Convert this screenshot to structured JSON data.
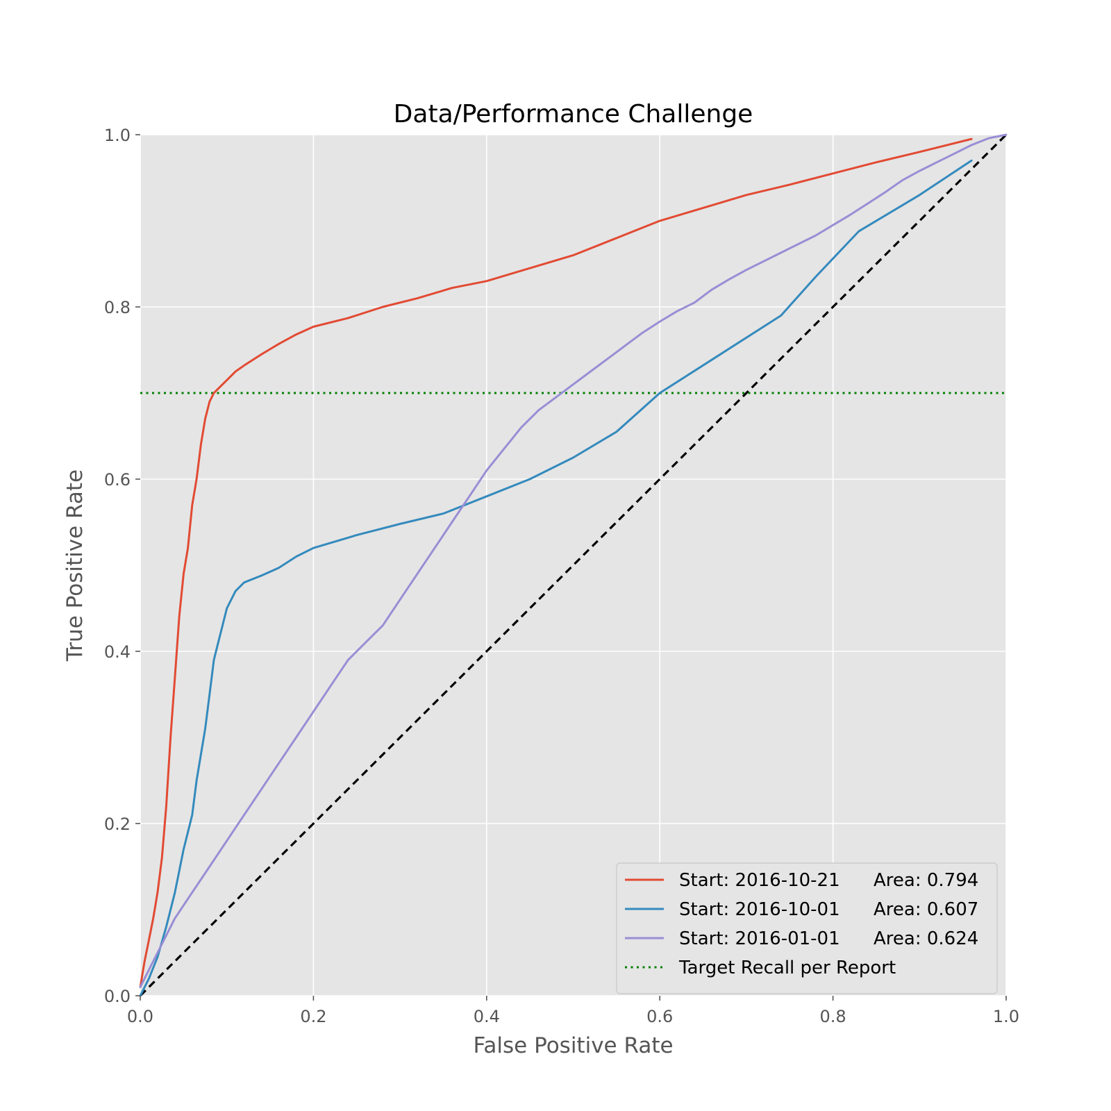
{
  "chart_data": {
    "type": "line",
    "title": "Data/Performance Challenge",
    "xlabel": "False Positive Rate",
    "ylabel": "True Positive Rate",
    "xlim": [
      0,
      1
    ],
    "ylim": [
      0,
      1
    ],
    "x_ticks": [
      "0.0",
      "0.2",
      "0.4",
      "0.6",
      "0.8",
      "1.0"
    ],
    "y_ticks": [
      "0.0",
      "0.2",
      "0.4",
      "0.6",
      "0.8",
      "1.0"
    ],
    "grid": true,
    "legend_position": "lower-right",
    "colors": {
      "plot_background": "#e5e5e5",
      "grid": "#ffffff",
      "red": "#e24a33",
      "blue": "#348abd",
      "purple": "#988ed5",
      "green": "#008000",
      "black": "#000000"
    },
    "series": [
      {
        "name": "Start: 2016-10-21",
        "area_label": "Area: 0.794",
        "color": "#e24a33",
        "style": "solid",
        "points": [
          [
            0,
            0.01
          ],
          [
            0.005,
            0.04
          ],
          [
            0.01,
            0.065
          ],
          [
            0.015,
            0.09
          ],
          [
            0.02,
            0.12
          ],
          [
            0.025,
            0.16
          ],
          [
            0.03,
            0.22
          ],
          [
            0.035,
            0.3
          ],
          [
            0.04,
            0.37
          ],
          [
            0.045,
            0.44
          ],
          [
            0.05,
            0.49
          ],
          [
            0.055,
            0.52
          ],
          [
            0.06,
            0.57
          ],
          [
            0.065,
            0.6
          ],
          [
            0.07,
            0.64
          ],
          [
            0.075,
            0.67
          ],
          [
            0.08,
            0.69
          ],
          [
            0.085,
            0.7
          ],
          [
            0.09,
            0.705
          ],
          [
            0.1,
            0.715
          ],
          [
            0.11,
            0.725
          ],
          [
            0.12,
            0.732
          ],
          [
            0.14,
            0.745
          ],
          [
            0.16,
            0.757
          ],
          [
            0.18,
            0.768
          ],
          [
            0.2,
            0.777
          ],
          [
            0.24,
            0.787
          ],
          [
            0.28,
            0.8
          ],
          [
            0.32,
            0.81
          ],
          [
            0.36,
            0.822
          ],
          [
            0.4,
            0.83
          ],
          [
            0.45,
            0.845
          ],
          [
            0.5,
            0.86
          ],
          [
            0.55,
            0.88
          ],
          [
            0.6,
            0.9
          ],
          [
            0.65,
            0.915
          ],
          [
            0.7,
            0.93
          ],
          [
            0.75,
            0.942
          ],
          [
            0.8,
            0.955
          ],
          [
            0.85,
            0.968
          ],
          [
            0.9,
            0.98
          ],
          [
            0.96,
            0.995
          ]
        ]
      },
      {
        "name": "Start: 2016-10-01",
        "area_label": "Area: 0.607",
        "color": "#348abd",
        "style": "solid",
        "points": [
          [
            0,
            0
          ],
          [
            0.01,
            0.02
          ],
          [
            0.02,
            0.045
          ],
          [
            0.03,
            0.08
          ],
          [
            0.04,
            0.12
          ],
          [
            0.05,
            0.17
          ],
          [
            0.06,
            0.21
          ],
          [
            0.065,
            0.25
          ],
          [
            0.07,
            0.28
          ],
          [
            0.075,
            0.31
          ],
          [
            0.08,
            0.35
          ],
          [
            0.085,
            0.39
          ],
          [
            0.09,
            0.41
          ],
          [
            0.095,
            0.43
          ],
          [
            0.1,
            0.45
          ],
          [
            0.11,
            0.47
          ],
          [
            0.12,
            0.48
          ],
          [
            0.14,
            0.488
          ],
          [
            0.16,
            0.497
          ],
          [
            0.18,
            0.51
          ],
          [
            0.2,
            0.52
          ],
          [
            0.25,
            0.535
          ],
          [
            0.3,
            0.548
          ],
          [
            0.35,
            0.56
          ],
          [
            0.4,
            0.58
          ],
          [
            0.45,
            0.6
          ],
          [
            0.5,
            0.625
          ],
          [
            0.55,
            0.655
          ],
          [
            0.6,
            0.7
          ],
          [
            0.67,
            0.745
          ],
          [
            0.74,
            0.79
          ],
          [
            0.78,
            0.835
          ],
          [
            0.83,
            0.888
          ],
          [
            0.9,
            0.93
          ],
          [
            0.96,
            0.97
          ]
        ]
      },
      {
        "name": "Start: 2016-01-01",
        "area_label": "Area: 0.624",
        "color": "#988ed5",
        "style": "solid",
        "points": [
          [
            0,
            0.01
          ],
          [
            0.02,
            0.05
          ],
          [
            0.04,
            0.09
          ],
          [
            0.06,
            0.12
          ],
          [
            0.08,
            0.15
          ],
          [
            0.1,
            0.18
          ],
          [
            0.12,
            0.21
          ],
          [
            0.14,
            0.24
          ],
          [
            0.16,
            0.27
          ],
          [
            0.18,
            0.3
          ],
          [
            0.2,
            0.33
          ],
          [
            0.22,
            0.36
          ],
          [
            0.24,
            0.39
          ],
          [
            0.26,
            0.41
          ],
          [
            0.28,
            0.43
          ],
          [
            0.3,
            0.46
          ],
          [
            0.32,
            0.49
          ],
          [
            0.34,
            0.52
          ],
          [
            0.36,
            0.55
          ],
          [
            0.38,
            0.58
          ],
          [
            0.4,
            0.61
          ],
          [
            0.42,
            0.635
          ],
          [
            0.44,
            0.66
          ],
          [
            0.46,
            0.68
          ],
          [
            0.48,
            0.695
          ],
          [
            0.5,
            0.71
          ],
          [
            0.52,
            0.725
          ],
          [
            0.54,
            0.74
          ],
          [
            0.56,
            0.755
          ],
          [
            0.58,
            0.77
          ],
          [
            0.6,
            0.783
          ],
          [
            0.62,
            0.795
          ],
          [
            0.64,
            0.805
          ],
          [
            0.66,
            0.82
          ],
          [
            0.68,
            0.832
          ],
          [
            0.7,
            0.843
          ],
          [
            0.72,
            0.853
          ],
          [
            0.74,
            0.863
          ],
          [
            0.76,
            0.873
          ],
          [
            0.78,
            0.883
          ],
          [
            0.8,
            0.895
          ],
          [
            0.82,
            0.907
          ],
          [
            0.84,
            0.92
          ],
          [
            0.86,
            0.933
          ],
          [
            0.88,
            0.947
          ],
          [
            0.9,
            0.958
          ],
          [
            0.92,
            0.968
          ],
          [
            0.94,
            0.978
          ],
          [
            0.96,
            0.988
          ],
          [
            0.98,
            0.996
          ],
          [
            1,
            1
          ]
        ]
      }
    ],
    "reference_lines": [
      {
        "name": "Target Recall per Report",
        "color": "#008000",
        "style": "dotted",
        "y": 0.7
      },
      {
        "name": "",
        "color": "#000000",
        "style": "dashed",
        "from": [
          0,
          0
        ],
        "to": [
          1,
          1
        ]
      }
    ]
  }
}
